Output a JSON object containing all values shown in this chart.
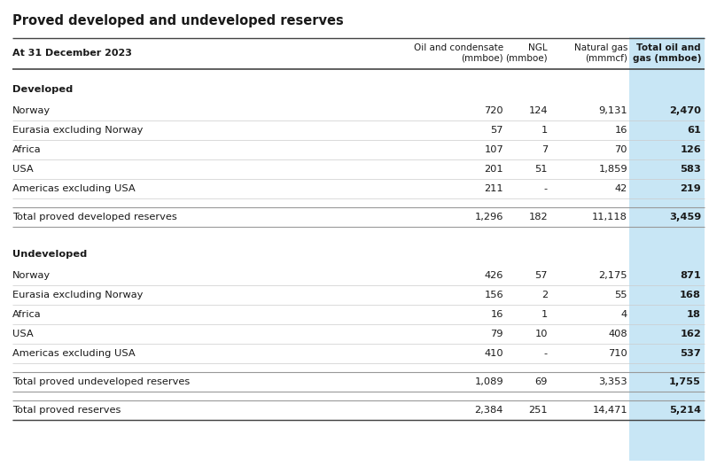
{
  "title": "Proved developed and undeveloped reserves",
  "subtitle": "At 31 December 2023",
  "col_headers": [
    "",
    "Oil and condensate\n(mmboe)",
    "NGL\n(mmboe)",
    "Natural gas\n(mmmcf)",
    "Total oil and\ngas (mmboe)"
  ],
  "background_color": "#ffffff",
  "light_blue_bg": "#c8e6f5",
  "text_color": "#1a1a1a",
  "divider_color": "#999999",
  "thick_divider_color": "#444444",
  "light_divider_color": "#cccccc",
  "title_fontsize": 10.5,
  "header_fontsize": 8.0,
  "body_fontsize": 8.2,
  "section_developed": {
    "label": "Developed",
    "rows": [
      {
        "name": "Norway",
        "oil": "720",
        "ngl": "124",
        "gas": "9,131",
        "total": "2,470"
      },
      {
        "name": "Eurasia excluding Norway",
        "oil": "57",
        "ngl": "1",
        "gas": "16",
        "total": "61"
      },
      {
        "name": "Africa",
        "oil": "107",
        "ngl": "7",
        "gas": "70",
        "total": "126"
      },
      {
        "name": "USA",
        "oil": "201",
        "ngl": "51",
        "gas": "1,859",
        "total": "583"
      },
      {
        "name": "Americas excluding USA",
        "oil": "211",
        "ngl": "-",
        "gas": "42",
        "total": "219"
      }
    ],
    "total_row": {
      "name": "Total proved developed reserves",
      "oil": "1,296",
      "ngl": "182",
      "gas": "11,118",
      "total": "3,459"
    }
  },
  "section_undeveloped": {
    "label": "Undeveloped",
    "rows": [
      {
        "name": "Norway",
        "oil": "426",
        "ngl": "57",
        "gas": "2,175",
        "total": "871"
      },
      {
        "name": "Eurasia excluding Norway",
        "oil": "156",
        "ngl": "2",
        "gas": "55",
        "total": "168"
      },
      {
        "name": "Africa",
        "oil": "16",
        "ngl": "1",
        "gas": "4",
        "total": "18"
      },
      {
        "name": "USA",
        "oil": "79",
        "ngl": "10",
        "gas": "408",
        "total": "162"
      },
      {
        "name": "Americas excluding USA",
        "oil": "410",
        "ngl": "-",
        "gas": "710",
        "total": "537"
      }
    ],
    "total_row": {
      "name": "Total proved undeveloped reserves",
      "oil": "1,089",
      "ngl": "69",
      "gas": "3,353",
      "total": "1,755"
    }
  },
  "grand_total_row": {
    "name": "Total proved reserves",
    "oil": "2,384",
    "ngl": "251",
    "gas": "14,471",
    "total": "5,214"
  }
}
